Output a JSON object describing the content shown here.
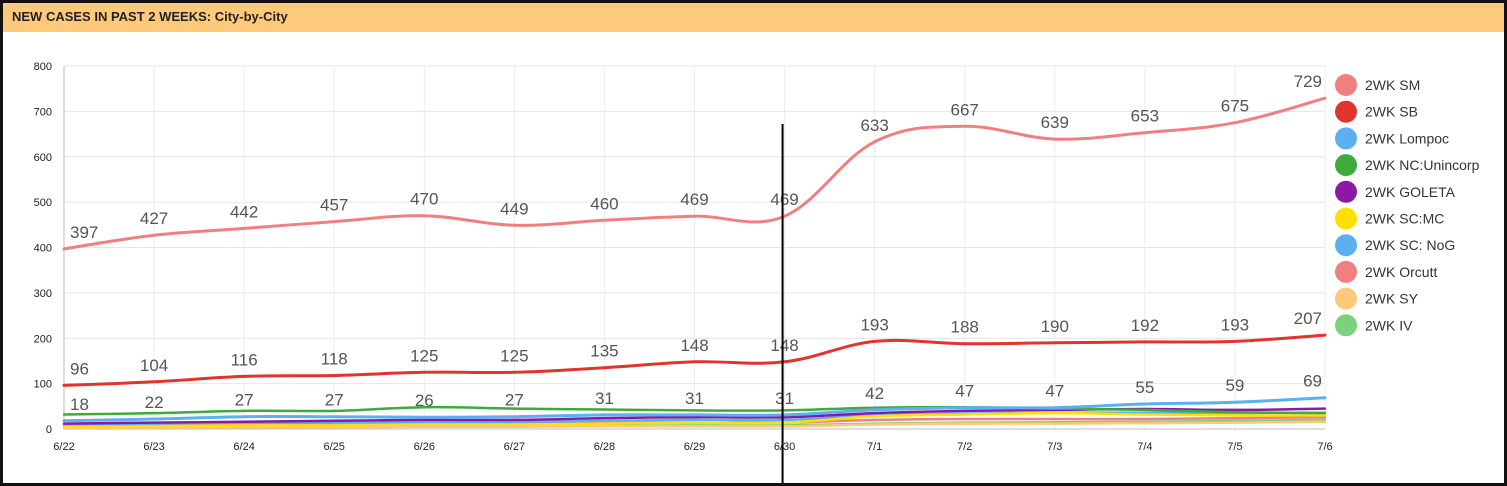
{
  "title": "NEW CASES IN PAST 2 WEEKS: City-by-City",
  "chart_data": {
    "type": "line",
    "title": "NEW CASES IN PAST 2 WEEKS: City-by-City",
    "xlabel": "",
    "ylabel": "",
    "ylim": [
      0,
      800
    ],
    "yticks": [
      "0",
      "100",
      "200",
      "300",
      "400",
      "500",
      "600",
      "700",
      "800"
    ],
    "categories": [
      "6/22",
      "6/23",
      "6/24",
      "6/25",
      "6/26",
      "6/27",
      "6/28",
      "6/29",
      "6/30",
      "7/1",
      "7/2",
      "7/3",
      "7/4",
      "7/5",
      "7/6"
    ],
    "grid": true,
    "legend_position": "right",
    "vertical_marker_at": "6/30",
    "series": [
      {
        "name": "2WK SM",
        "color": "#f08080",
        "labeled": true,
        "values": [
          397,
          427,
          442,
          457,
          470,
          449,
          460,
          469,
          469,
          633,
          667,
          639,
          653,
          675,
          729
        ]
      },
      {
        "name": "2WK SB",
        "color": "#e0342e",
        "labeled": true,
        "values": [
          96,
          104,
          116,
          118,
          125,
          125,
          135,
          148,
          148,
          193,
          188,
          190,
          192,
          193,
          207
        ]
      },
      {
        "name": "2WK Lompoc",
        "color": "#5caff0",
        "labeled": true,
        "values": [
          18,
          22,
          27,
          27,
          26,
          27,
          31,
          31,
          31,
          42,
          47,
          47,
          55,
          59,
          69
        ]
      },
      {
        "name": "2WK NC:Unincorp",
        "color": "#3cab3c",
        "labeled": false,
        "values": [
          32,
          35,
          40,
          40,
          48,
          45,
          43,
          41,
          41,
          47,
          48,
          45,
          42,
          37,
          35
        ]
      },
      {
        "name": "2WK GOLETA",
        "color": "#8a1aa6",
        "labeled": false,
        "values": [
          12,
          14,
          16,
          18,
          20,
          20,
          24,
          26,
          26,
          35,
          40,
          42,
          44,
          42,
          45
        ]
      },
      {
        "name": "2WK SC:MC",
        "color": "#ffe000",
        "labeled": false,
        "values": [
          5,
          6,
          8,
          8,
          10,
          10,
          12,
          14,
          14,
          28,
          32,
          35,
          32,
          30,
          30
        ]
      },
      {
        "name": "2WK SC: NoG",
        "color": "#5caff0",
        "labeled": false,
        "values": [
          10,
          12,
          14,
          15,
          16,
          16,
          18,
          20,
          20,
          30,
          34,
          36,
          36,
          35,
          36
        ]
      },
      {
        "name": "2WK Orcutt",
        "color": "#f08080",
        "labeled": false,
        "values": [
          8,
          9,
          10,
          10,
          11,
          12,
          13,
          14,
          14,
          20,
          22,
          22,
          22,
          24,
          26
        ]
      },
      {
        "name": "2WK SY",
        "color": "#fcc87a",
        "labeled": false,
        "values": [
          2,
          3,
          4,
          4,
          5,
          5,
          6,
          6,
          6,
          10,
          12,
          12,
          13,
          14,
          16
        ]
      },
      {
        "name": "2WK IV",
        "color": "#7cd27c",
        "labeled": false,
        "values": [
          4,
          5,
          5,
          6,
          6,
          7,
          7,
          8,
          8,
          12,
          14,
          15,
          16,
          18,
          20
        ]
      }
    ]
  }
}
